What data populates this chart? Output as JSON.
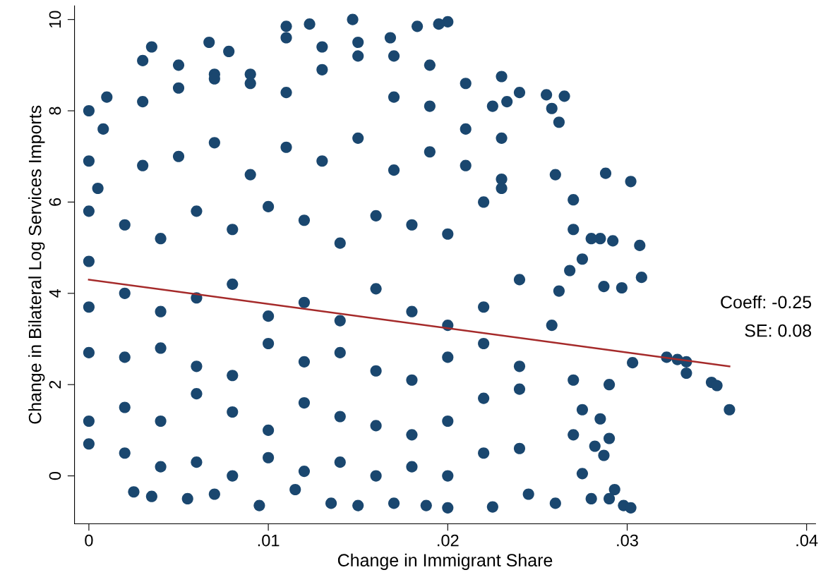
{
  "chart_data": {
    "type": "scatter",
    "xlabel": "Change in Immigrant Share",
    "ylabel": "Change in Bilateral Log Services Imports",
    "xlim": [
      -0.0008,
      0.0405
    ],
    "ylim": [
      -1.05,
      10.3
    ],
    "xticks": [
      0,
      {
        "value": 0.01,
        "label": ".01"
      },
      {
        "value": 0.02,
        "label": ".02"
      },
      {
        "value": 0.03,
        "label": ".03"
      },
      {
        "value": 0.04,
        "label": ".04"
      }
    ],
    "yticks": [
      0,
      2,
      4,
      6,
      8,
      10
    ],
    "grid": false,
    "annotations": [
      "Coeff: -0.25",
      "SE: 0.08"
    ],
    "series": [
      {
        "marker": "circle",
        "color": "#1a476f",
        "x": [
          0.0302,
          0.0307,
          0.0308,
          0.0303,
          0.0297,
          0.0288,
          0.0292,
          0.0285,
          0.0322,
          0.0328,
          0.0333,
          0.0333,
          0.0347,
          0.035,
          0.0357,
          0.029,
          0.0287,
          0.0293,
          0.0298,
          0.0302,
          0.029,
          0.028,
          0.0282,
          0.0285,
          0.029,
          0.0287,
          0.028,
          0.0275,
          0.0265,
          0.0255,
          0.0258,
          0.0262,
          0.024,
          0.0233,
          0.0225,
          0.023,
          0.027,
          0.026,
          0.027,
          0.0268,
          0.0258,
          0.0262,
          0.027,
          0.0275,
          0.027,
          0.026,
          0.0275,
          0.0147,
          0.02,
          0.0195,
          0.011,
          0.0123,
          0.0035,
          0.0067,
          0.0183,
          0.0168,
          0.0078,
          0,
          0,
          0,
          0,
          0,
          0,
          0,
          0,
          0.0005,
          0.001,
          0.0008,
          0.0095,
          0.0135,
          0.015,
          0.017,
          0.0188,
          0.02,
          0.0225,
          0.0055,
          0.0035,
          0.0025,
          0.007,
          0.0115,
          0.0245,
          0.002,
          0.004,
          0.006,
          0.008,
          0.01,
          0.012,
          0.014,
          0.016,
          0.018,
          0.02,
          0.022,
          0.024,
          0.002,
          0.004,
          0.006,
          0.008,
          0.01,
          0.012,
          0.014,
          0.016,
          0.018,
          0.02,
          0.022,
          0.024,
          0.002,
          0.004,
          0.006,
          0.008,
          0.01,
          0.012,
          0.014,
          0.016,
          0.018,
          0.02,
          0.022,
          0.024,
          0.002,
          0.004,
          0.006,
          0.008,
          0.01,
          0.012,
          0.014,
          0.016,
          0.018,
          0.02,
          0.022,
          0.024,
          0.002,
          0.004,
          0.006,
          0.008,
          0.01,
          0.012,
          0.014,
          0.016,
          0.018,
          0.02,
          0.022,
          0.003,
          0.005,
          0.007,
          0.009,
          0.011,
          0.013,
          0.015,
          0.017,
          0.019,
          0.021,
          0.023,
          0.003,
          0.005,
          0.007,
          0.009,
          0.011,
          0.013,
          0.015,
          0.017,
          0.019,
          0.021,
          0.023,
          0.003,
          0.005,
          0.007,
          0.009,
          0.011,
          0.013,
          0.015,
          0.017,
          0.019,
          0.021,
          0.023
        ],
        "values": [
          6.45,
          5.05,
          4.35,
          2.48,
          4.12,
          6.63,
          5.15,
          5.2,
          2.6,
          2.55,
          2.5,
          2.25,
          2.05,
          1.98,
          1.45,
          0.82,
          0.45,
          -0.3,
          -0.65,
          -0.7,
          -0.5,
          -0.5,
          0.65,
          1.25,
          2.0,
          4.15,
          5.2,
          4.75,
          8.32,
          8.35,
          8.05,
          7.75,
          8.4,
          8.2,
          8.1,
          8.75,
          6.05,
          6.6,
          5.4,
          4.5,
          3.3,
          4.05,
          2.1,
          1.45,
          0.9,
          -0.6,
          0.05,
          10.0,
          9.95,
          9.9,
          9.85,
          9.9,
          9.4,
          9.5,
          9.85,
          9.6,
          9.3,
          8.0,
          6.9,
          5.8,
          4.7,
          3.7,
          2.7,
          1.2,
          0.7,
          6.3,
          8.3,
          7.6,
          -0.65,
          -0.6,
          -0.65,
          -0.6,
          -0.65,
          -0.7,
          -0.68,
          -0.5,
          -0.45,
          -0.35,
          -0.4,
          -0.3,
          -0.4,
          0.5,
          0.2,
          0.3,
          0.0,
          0.4,
          0.1,
          0.3,
          0.0,
          0.2,
          0.0,
          0.5,
          0.6,
          1.5,
          1.2,
          1.8,
          1.4,
          1.0,
          1.6,
          1.3,
          1.1,
          0.9,
          1.2,
          1.7,
          1.9,
          2.6,
          2.8,
          2.4,
          2.2,
          2.9,
          2.5,
          2.7,
          2.3,
          2.1,
          2.6,
          2.9,
          2.4,
          4.0,
          3.6,
          3.9,
          4.2,
          3.5,
          3.8,
          3.4,
          4.1,
          3.6,
          3.3,
          3.7,
          4.3,
          5.5,
          5.2,
          5.8,
          5.4,
          5.9,
          5.6,
          5.1,
          5.7,
          5.5,
          5.3,
          6.0,
          6.8,
          7.0,
          7.3,
          6.6,
          7.2,
          6.9,
          7.4,
          6.7,
          7.1,
          6.8,
          6.5,
          8.2,
          8.5,
          8.8,
          8.6,
          8.4,
          8.9,
          9.2,
          8.3,
          8.1,
          8.6,
          6.3,
          9.1,
          9.0,
          8.7,
          8.8,
          9.6,
          9.4,
          9.5,
          9.2,
          9.0,
          7.6,
          7.4
        ]
      },
      {
        "type": "line",
        "color": "#a52a2a",
        "x": [
          0,
          0.0357
        ],
        "values": [
          4.3,
          2.4
        ]
      }
    ]
  }
}
